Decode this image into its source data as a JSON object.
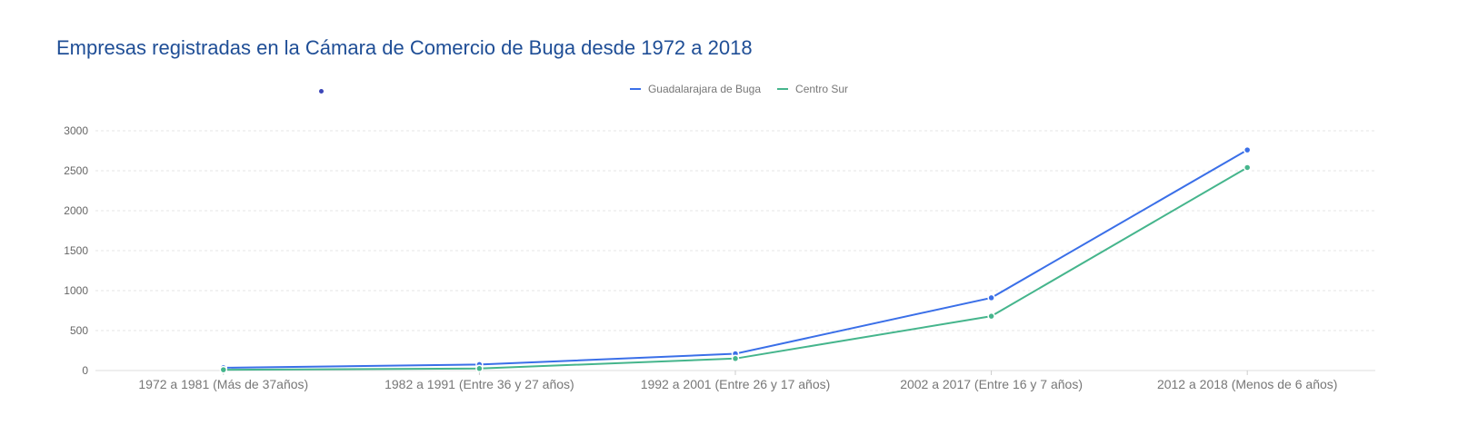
{
  "chart_data": {
    "type": "line",
    "title": "Empresas registradas en la Cámara de Comercio de Buga desde 1972 a 2018",
    "categories": [
      "1972 a 1981 (Más de 37años)",
      "1982 a 1991 (Entre 36 y 27 años)",
      "1992 a 2001 (Entre 26 y 17 años)",
      "2002 a 2017 (Entre 16 y 7 años)",
      "2012 a 2018 (Menos de 6 años)"
    ],
    "series": [
      {
        "name": "Guadalarajara de Buga",
        "color": "#3a6fe8",
        "values": [
          35,
          75,
          210,
          910,
          2760
        ]
      },
      {
        "name": "Centro Sur",
        "color": "#45b58c",
        "values": [
          10,
          25,
          150,
          680,
          2540
        ]
      }
    ],
    "yticks": [
      0,
      500,
      1000,
      1500,
      2000,
      2500,
      3000
    ],
    "ylim": [
      0,
      3000
    ],
    "grid": true,
    "legend_position": "top-center"
  }
}
